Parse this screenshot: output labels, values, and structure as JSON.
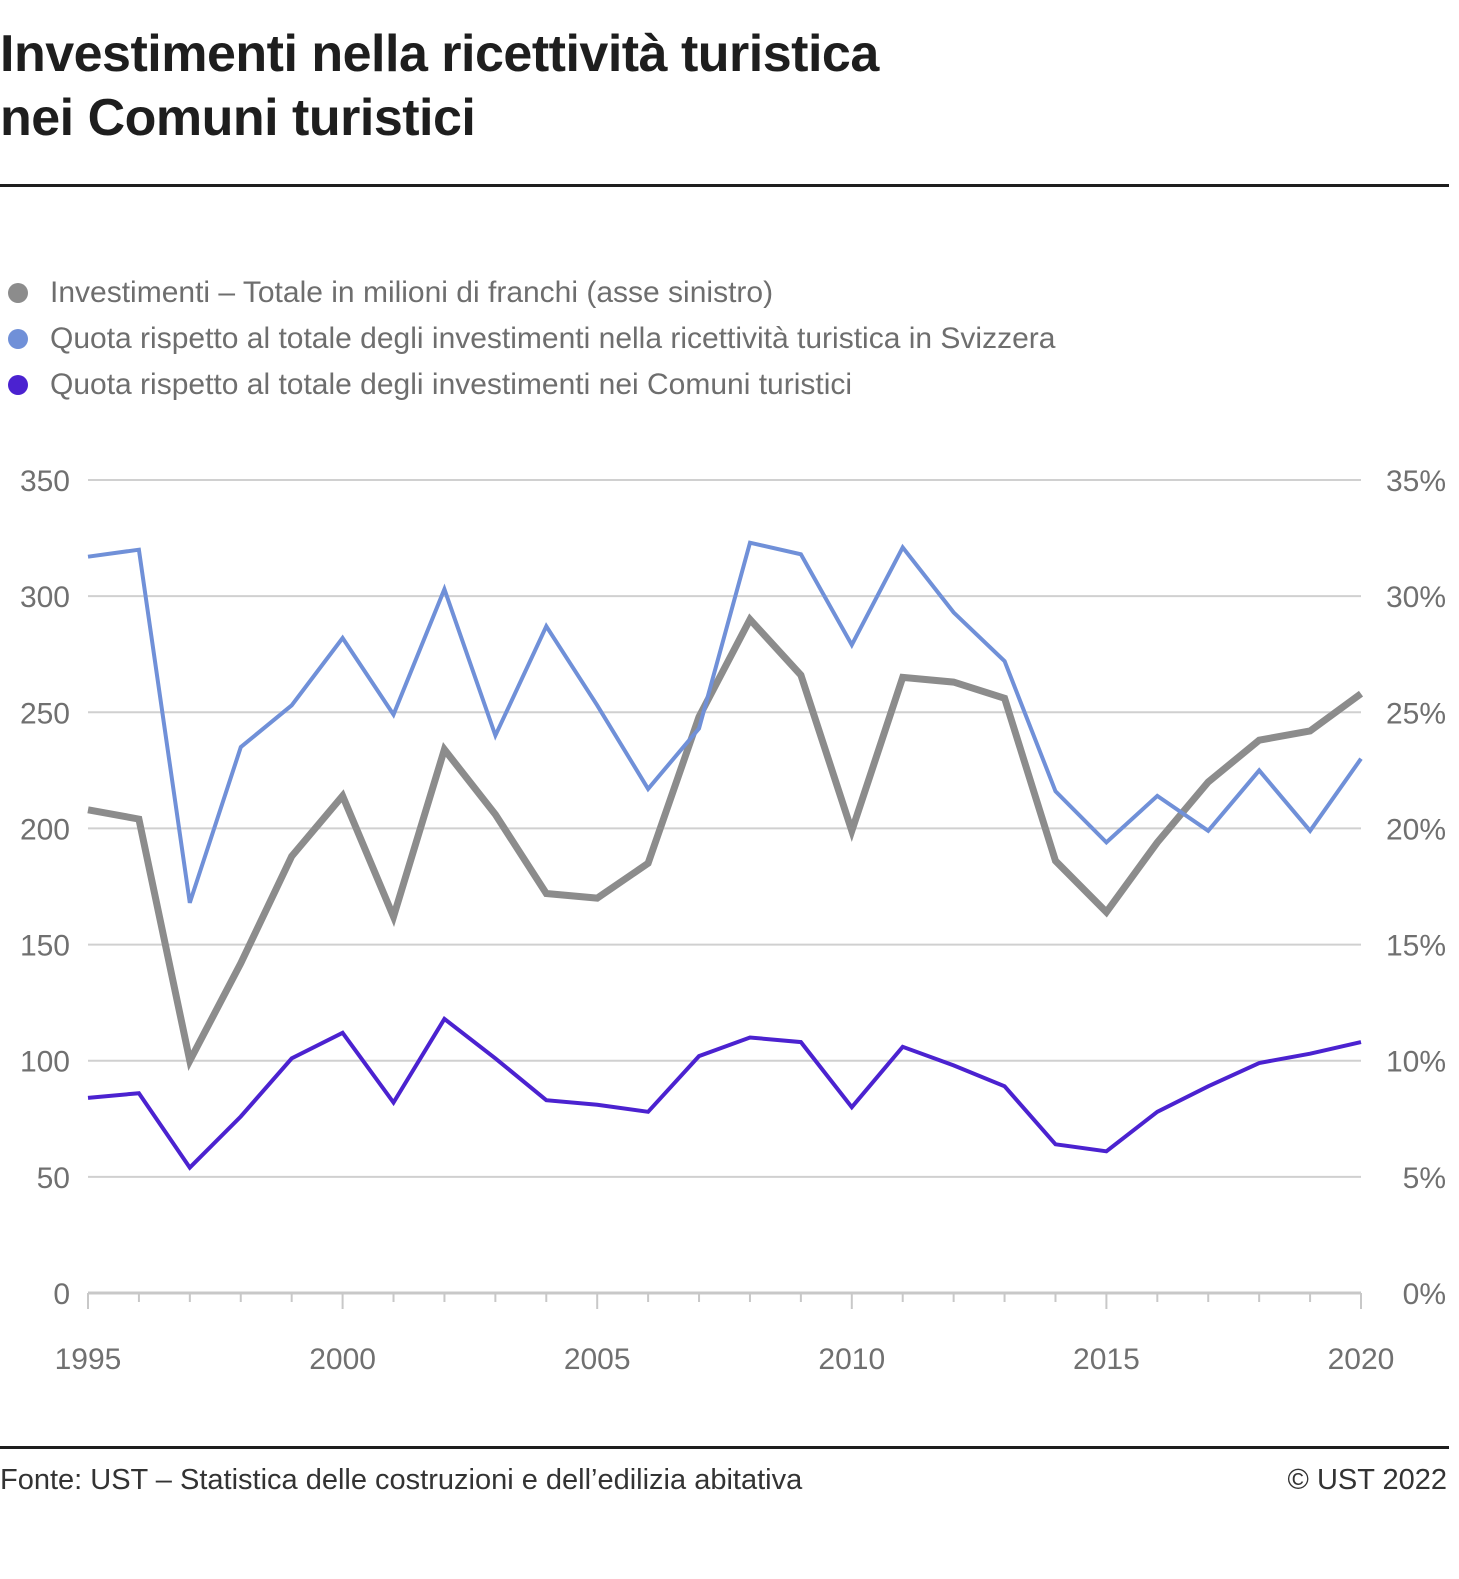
{
  "title_line1": "Investimenti nella ricettività turistica",
  "title_line2": "nei Comuni turistici",
  "legend": [
    {
      "label": "Investimenti – Totale in milioni di franchi (asse sinistro)",
      "color": "#8c8c8c"
    },
    {
      "label": "Quota rispetto al totale degli investimenti nella ricettività turistica in Svizzera",
      "color": "#7090d8"
    },
    {
      "label": "Quota rispetto al totale degli investimenti nei Comuni turistici",
      "color": "#4b22d0"
    }
  ],
  "footer": {
    "source": "Fonte: UST – Statistica delle costruzioni e dell’edilizia abitativa",
    "copyright": "© UST 2022"
  },
  "chart_data": {
    "type": "line",
    "title": "Investimenti nella ricettività turistica nei Comuni turistici",
    "x": [
      1995,
      1996,
      1997,
      1998,
      1999,
      2000,
      2001,
      2002,
      2003,
      2004,
      2005,
      2006,
      2007,
      2008,
      2009,
      2010,
      2011,
      2012,
      2013,
      2014,
      2015,
      2016,
      2017,
      2018,
      2019,
      2020
    ],
    "x_tick_labels": [
      "1995",
      "2000",
      "2005",
      "2010",
      "2015",
      "2020"
    ],
    "xlim": [
      1995,
      2020
    ],
    "y_left": {
      "label": "milioni di franchi",
      "lim": [
        0,
        350
      ],
      "ticks": [
        "0",
        "50",
        "100",
        "150",
        "200",
        "250",
        "300",
        "350"
      ]
    },
    "y_right": {
      "label": "%",
      "lim": [
        0,
        35
      ],
      "ticks": [
        "0%",
        "5%",
        "10%",
        "15%",
        "20%",
        "25%",
        "30%",
        "35%"
      ]
    },
    "grid": true,
    "legend_position": "top-left",
    "series": [
      {
        "name": "Investimenti – Totale in milioni di franchi (asse sinistro)",
        "axis": "left",
        "color": "#8c8c8c",
        "values": [
          208,
          204,
          100,
          142,
          188,
          214,
          162,
          234,
          206,
          172,
          170,
          185,
          248,
          290,
          266,
          199,
          265,
          263,
          256,
          186,
          164,
          194,
          220,
          238,
          242,
          258
        ]
      },
      {
        "name": "Quota rispetto al totale degli investimenti nella ricettività turistica in Svizzera",
        "axis": "right",
        "color": "#7090d8",
        "values": [
          31.7,
          32.0,
          16.8,
          23.5,
          25.3,
          28.2,
          24.9,
          30.3,
          24.0,
          28.7,
          25.3,
          21.7,
          24.3,
          32.3,
          31.8,
          27.9,
          32.1,
          29.3,
          27.2,
          21.6,
          19.4,
          21.4,
          19.9,
          22.5,
          19.9,
          23.0
        ]
      },
      {
        "name": "Quota rispetto al totale degli investimenti nei Comuni turistici",
        "axis": "right",
        "color": "#4b22d0",
        "values": [
          8.4,
          8.6,
          5.4,
          7.6,
          10.1,
          11.2,
          8.2,
          11.8,
          10.1,
          8.3,
          8.1,
          7.8,
          10.2,
          11.0,
          10.8,
          8.0,
          10.6,
          9.8,
          8.9,
          6.4,
          6.1,
          7.8,
          8.9,
          9.9,
          10.3,
          10.8
        ]
      }
    ]
  }
}
